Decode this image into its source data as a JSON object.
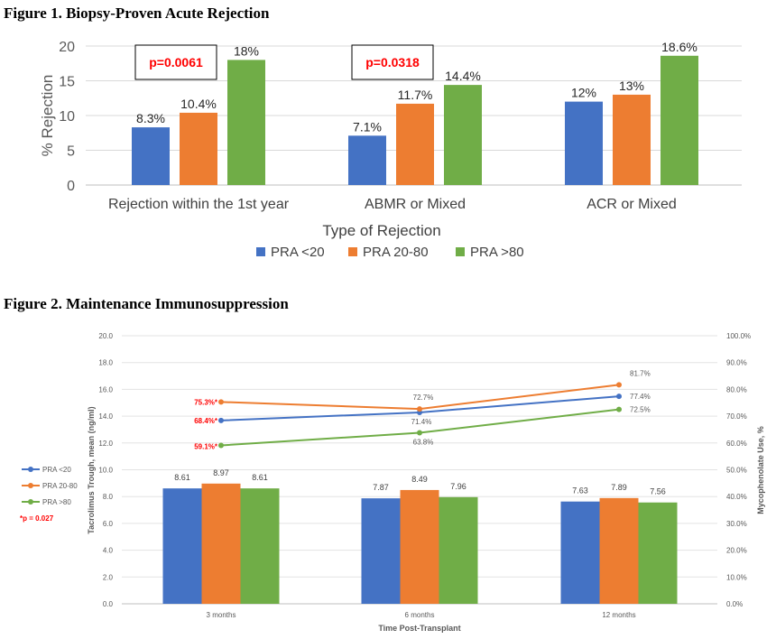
{
  "figure1": {
    "title": "Figure 1. Biopsy-Proven Acute Rejection"
  },
  "figure2": {
    "title": "Figure 2. Maintenance Immunosuppression"
  },
  "chart_data": [
    {
      "type": "bar",
      "title": "",
      "xlabel": "Type of Rejection",
      "ylabel": "% Rejection",
      "ylim": [
        0,
        20
      ],
      "yticks": [
        "0",
        "5",
        "10",
        "15",
        "20"
      ],
      "grid": true,
      "legend_position": "bottom",
      "categories": [
        "Rejection within the 1st year",
        "ABMR or Mixed",
        "ACR or Mixed"
      ],
      "series": [
        {
          "name": "PRA <20",
          "color": "#4472C4",
          "values": [
            8.3,
            7.1,
            12
          ],
          "labels": [
            "8.3%",
            "7.1%",
            "12%"
          ]
        },
        {
          "name": "PRA 20-80",
          "color": "#ED7D31",
          "values": [
            10.4,
            11.7,
            13
          ],
          "labels": [
            "10.4%",
            "11.7%",
            "13%"
          ]
        },
        {
          "name": "PRA >80",
          "color": "#70AD47",
          "values": [
            18,
            14.4,
            18.6
          ],
          "labels": [
            "18%",
            "14.4%",
            "18.6%"
          ]
        }
      ],
      "annotations": [
        {
          "text": "p=0.0061",
          "category": 0,
          "color": "#FF0000"
        },
        {
          "text": "p=0.0318",
          "category": 1,
          "color": "#FF0000"
        }
      ]
    },
    {
      "type": "bar+line",
      "title": "",
      "xlabel": "Time Post-Transplant",
      "ylabel": "Tacrolimus Trough, mean (ng/ml)",
      "y2label": "Mycophenolate Use, %",
      "ylim": [
        0,
        20
      ],
      "y2lim": [
        0,
        100
      ],
      "yticks": [
        "0.0",
        "2.0",
        "4.0",
        "6.0",
        "8.0",
        "10.0",
        "12.0",
        "14.0",
        "16.0",
        "18.0",
        "20.0"
      ],
      "y2ticks": [
        "0.0%",
        "10.0%",
        "20.0%",
        "30.0%",
        "40.0%",
        "50.0%",
        "60.0%",
        "70.0%",
        "80.0%",
        "90.0%",
        "100.0%"
      ],
      "grid": true,
      "legend_position": "left",
      "categories": [
        "3 months",
        "6 months",
        "12 months"
      ],
      "bar_series": [
        {
          "name": "PRA <20",
          "color": "#4472C4",
          "values": [
            8.61,
            7.87,
            7.63
          ],
          "labels": [
            "8.61",
            "7.87",
            "7.63"
          ]
        },
        {
          "name": "PRA 20-80",
          "color": "#ED7D31",
          "values": [
            8.97,
            8.49,
            7.89
          ],
          "labels": [
            "8.97",
            "8.49",
            "7.89"
          ]
        },
        {
          "name": "PRA >80",
          "color": "#70AD47",
          "values": [
            8.61,
            7.96,
            7.56
          ],
          "labels": [
            "8.61",
            "7.96",
            "7.56"
          ]
        }
      ],
      "line_series": [
        {
          "name": "PRA <20",
          "color": "#4472C4",
          "values": [
            68.4,
            71.4,
            77.4
          ],
          "labels": [
            "68.4%*",
            "71.4%",
            "77.4%"
          ],
          "label_red": [
            true,
            false,
            false
          ]
        },
        {
          "name": "PRA 20-80",
          "color": "#ED7D31",
          "values": [
            75.3,
            72.7,
            81.7
          ],
          "labels": [
            "75.3%*",
            "72.7%",
            "81.7%"
          ],
          "label_red": [
            true,
            false,
            false
          ]
        },
        {
          "name": "PRA >80",
          "color": "#70AD47",
          "values": [
            59.1,
            63.8,
            72.5
          ],
          "labels": [
            "59.1%*",
            "63.8%",
            "72.5%"
          ],
          "label_red": [
            true,
            false,
            false
          ]
        }
      ],
      "legend_note": "*p = 0.027"
    }
  ]
}
